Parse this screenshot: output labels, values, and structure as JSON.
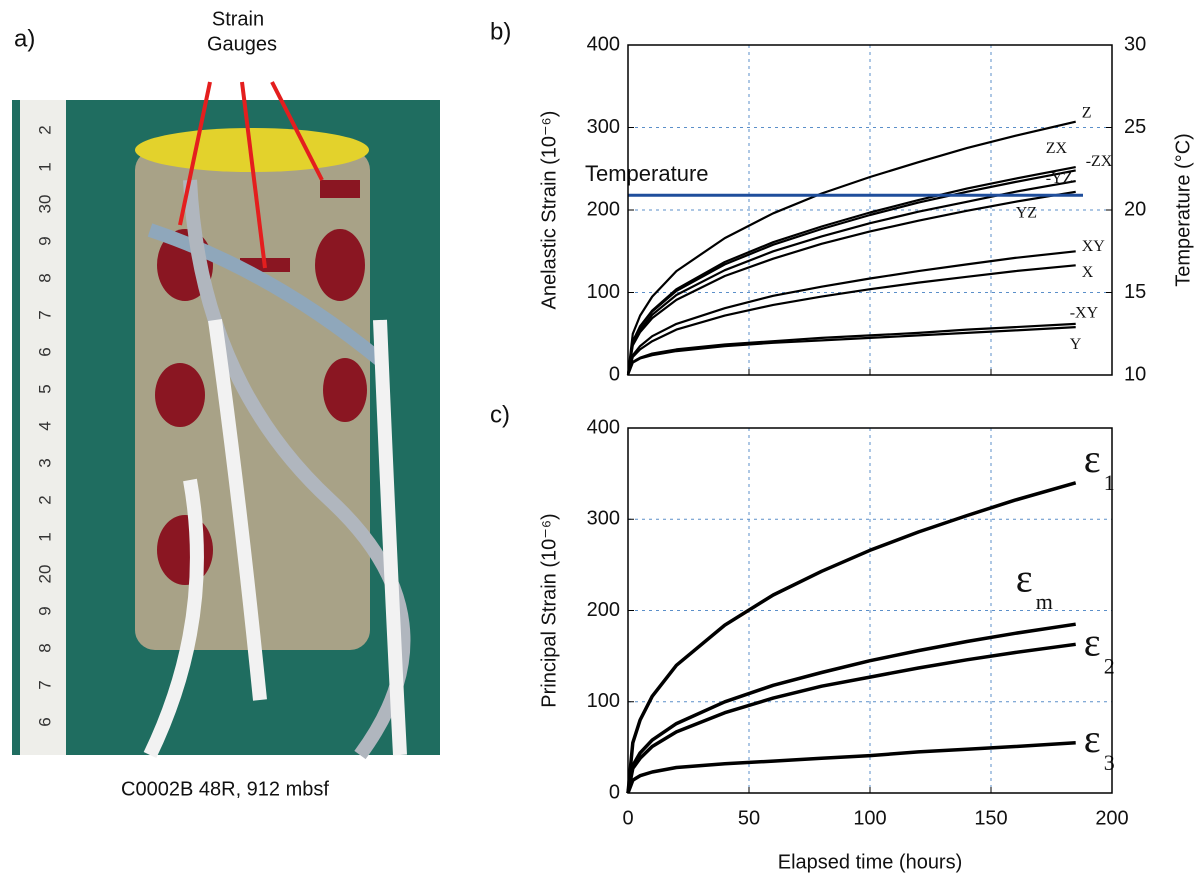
{
  "photo": {
    "panel_label": "a)",
    "annotation": [
      "Strain",
      "Gauges"
    ],
    "caption": "C0002B 48R, 912 mbsf",
    "ruler_labels": [
      "2",
      "1",
      "30",
      "9",
      "8",
      "7",
      "6",
      "5",
      "4",
      "3",
      "2",
      "1",
      "20",
      "9",
      "8",
      "7",
      "6"
    ]
  },
  "chart_data": [
    {
      "type": "line",
      "panel_label": "b)",
      "ylabel": "Anelastic Strain (10⁻⁶)",
      "y2label": "Temperature (°C)",
      "x": [
        0,
        2,
        5,
        10,
        20,
        40,
        60,
        80,
        100,
        120,
        140,
        160,
        185
      ],
      "xlim": [
        0,
        200
      ],
      "xticks": [
        0,
        50,
        100,
        150,
        200
      ],
      "ylim": [
        0,
        400
      ],
      "yticks": [
        0,
        100,
        200,
        300,
        400
      ],
      "y2lim": [
        10,
        30
      ],
      "y2ticks": [
        10,
        15,
        20,
        25,
        30
      ],
      "grid": true,
      "series": [
        {
          "name": "Z",
          "color": "#000000",
          "values": [
            0,
            50,
            72,
            95,
            126,
            166,
            196,
            220,
            240,
            258,
            275,
            290,
            307
          ]
        },
        {
          "name": "ZX",
          "color": "#000000",
          "values": [
            0,
            41,
            59,
            78,
            104,
            137,
            161,
            180,
            197,
            212,
            226,
            238,
            252
          ]
        },
        {
          "name": "-ZX",
          "color": "#000000",
          "values": [
            0,
            40,
            59,
            77,
            102,
            134,
            158,
            177,
            194,
            209,
            222,
            234,
            248
          ]
        },
        {
          "name": "-YZ",
          "color": "#000000",
          "values": [
            0,
            38,
            55,
            73,
            97,
            127,
            150,
            168,
            184,
            198,
            210,
            222,
            235
          ]
        },
        {
          "name": "YZ",
          "color": "#000000",
          "values": [
            0,
            36,
            52,
            69,
            91,
            120,
            141,
            159,
            174,
            187,
            199,
            210,
            222
          ]
        },
        {
          "name": "XY",
          "color": "#000000",
          "values": [
            0,
            24,
            35,
            47,
            62,
            81,
            96,
            107,
            117,
            126,
            134,
            142,
            150
          ]
        },
        {
          "name": "X",
          "color": "#000000",
          "values": [
            0,
            22,
            31,
            41,
            55,
            72,
            85,
            95,
            104,
            112,
            119,
            126,
            133
          ]
        },
        {
          "name": "-XY",
          "color": "#000000",
          "values": [
            0,
            16,
            21,
            26,
            31,
            37,
            41,
            45,
            48,
            51,
            55,
            58,
            62
          ]
        },
        {
          "name": "Y",
          "color": "#000000",
          "values": [
            0,
            15,
            20,
            24,
            29,
            35,
            39,
            42,
            45,
            48,
            51,
            54,
            58
          ]
        },
        {
          "name": "Temperature",
          "color": "#1f4e9c",
          "axis": "y2",
          "x": [
            0,
            188
          ],
          "values": [
            20.9,
            20.9
          ]
        }
      ]
    },
    {
      "type": "line",
      "panel_label": "c)",
      "ylabel": "Principal Strain (10⁻⁶)",
      "xlabel": "Elapsed time (hours)",
      "x": [
        0,
        2,
        5,
        10,
        20,
        40,
        60,
        80,
        100,
        120,
        140,
        160,
        185
      ],
      "xlim": [
        0,
        200
      ],
      "xticks": [
        0,
        50,
        100,
        150,
        200
      ],
      "ylim": [
        0,
        400
      ],
      "yticks": [
        0,
        100,
        200,
        300,
        400
      ],
      "grid": true,
      "series": [
        {
          "name": "ε",
          "subscript": "1",
          "color": "#000000",
          "values": [
            0,
            55,
            80,
            106,
            140,
            184,
            217,
            243,
            266,
            286,
            304,
            321,
            340
          ]
        },
        {
          "name": "ε",
          "subscript": "m",
          "color": "#000000",
          "values": [
            0,
            30,
            44,
            58,
            76,
            100,
            118,
            132,
            145,
            156,
            166,
            175,
            185
          ]
        },
        {
          "name": "ε",
          "subscript": "2",
          "color": "#000000",
          "values": [
            0,
            27,
            38,
            51,
            67,
            88,
            104,
            117,
            127,
            137,
            146,
            154,
            163
          ]
        },
        {
          "name": "ε",
          "subscript": "3",
          "color": "#000000",
          "values": [
            0,
            14,
            19,
            23,
            28,
            32,
            35,
            38,
            41,
            45,
            48,
            51,
            55
          ]
        }
      ]
    }
  ]
}
